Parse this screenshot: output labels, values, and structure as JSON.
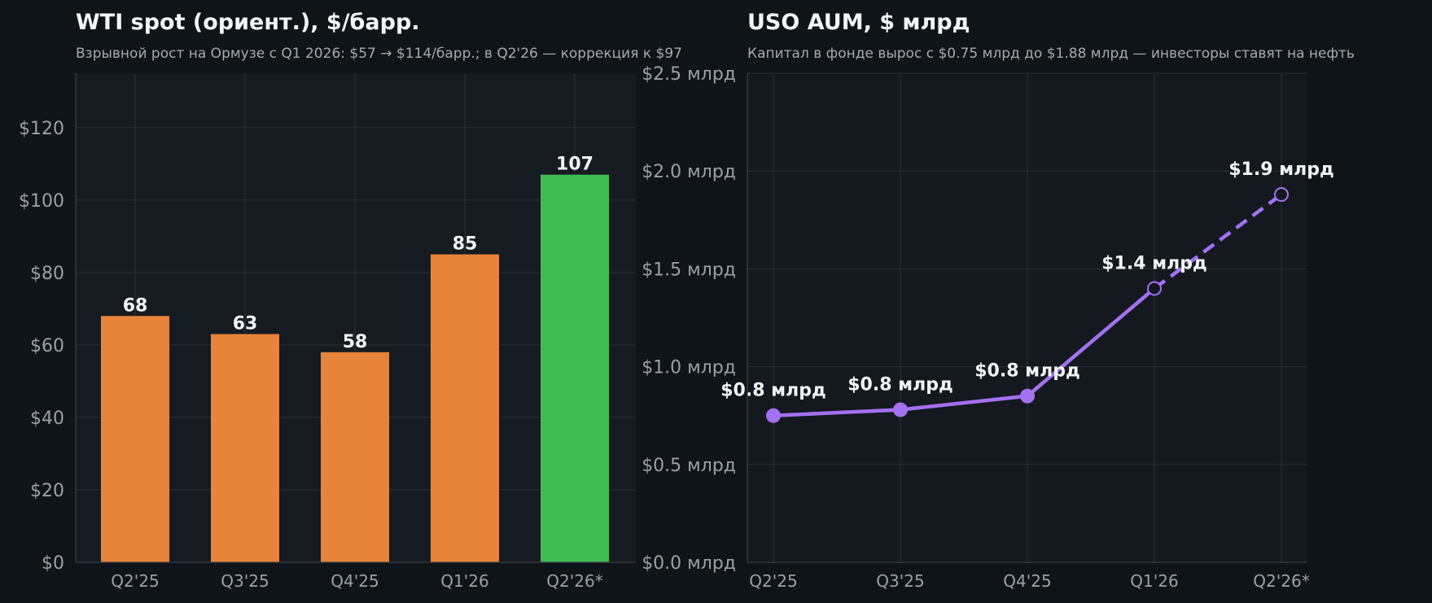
{
  "chart_data": [
    {
      "type": "bar",
      "title": "WTI spot (ориент.), $/барр.",
      "subtitle": "Взрывной рост на Ормузе с Q1 2026: $57 → $114/барр.; в Q2'26 — коррекция к $97",
      "categories": [
        "Q2'25",
        "Q3'25",
        "Q4'25",
        "Q1'26",
        "Q2'26*"
      ],
      "values": [
        68,
        63,
        58,
        85,
        107
      ],
      "data_labels": [
        "68",
        "63",
        "58",
        "85",
        "107"
      ],
      "colors": [
        "#e8843a",
        "#e8843a",
        "#e8843a",
        "#e8843a",
        "#3fbc53"
      ],
      "ylim": [
        0,
        135
      ],
      "yticks": [
        0,
        20,
        40,
        60,
        80,
        100,
        120
      ],
      "ytick_labels": [
        "$0",
        "$20",
        "$40",
        "$60",
        "$80",
        "$100",
        "$120"
      ],
      "grid": true
    },
    {
      "type": "line",
      "title": "USO AUM, $ млрд",
      "subtitle": "Капитал в фонде вырос с $0.75 млрд до $1.88 млрд — инвесторы ставят на нефть",
      "categories": [
        "Q2'25",
        "Q3'25",
        "Q4'25",
        "Q1'26",
        "Q2'26*"
      ],
      "values": [
        0.75,
        0.78,
        0.85,
        1.4,
        1.88
      ],
      "data_labels": [
        "$0.8 млрд",
        "$0.8 млрд",
        "$0.8 млрд",
        "$1.4 млрд",
        "$1.9 млрд"
      ],
      "estimated_from_index": 3,
      "color": "#a371f2",
      "ylim": [
        0,
        2.5
      ],
      "yticks": [
        0,
        0.5,
        1.0,
        1.5,
        2.0,
        2.5
      ],
      "ytick_labels": [
        "$0.0 млрд",
        "$0.5 млрд",
        "$1.0 млрд",
        "$1.5 млрд",
        "$2.0 млрд",
        "$2.5 млрд"
      ],
      "grid": true
    }
  ],
  "colors": {
    "background": "#0f1418",
    "plot_bg_left": "#161b21",
    "plot_bg_right": "#14191f"
  }
}
